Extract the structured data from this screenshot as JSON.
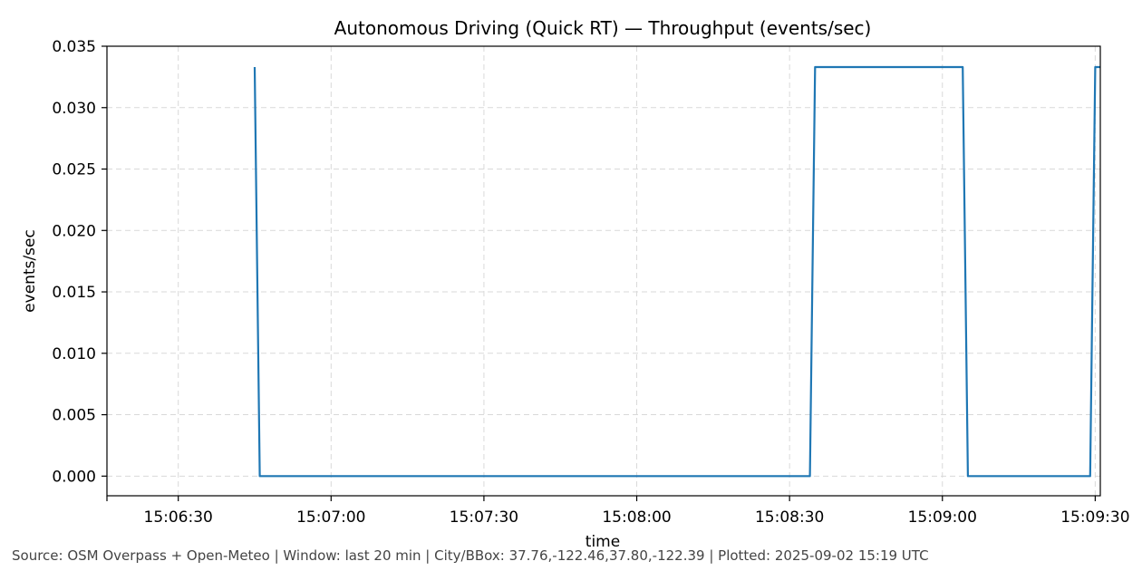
{
  "chart_data": {
    "type": "line",
    "title": "Autonomous Driving (Quick RT) — Throughput (events/sec)",
    "xlabel": "time",
    "ylabel": "events/sec",
    "ylim": [
      -0.0016,
      0.035
    ],
    "xlim": [
      "15:06:16",
      "15:09:31"
    ],
    "yticks": [
      "0.000",
      "0.005",
      "0.010",
      "0.015",
      "0.020",
      "0.025",
      "0.030",
      "0.035"
    ],
    "xticks": [
      "15:06:30",
      "15:07:00",
      "15:07:30",
      "15:08:00",
      "15:08:30",
      "15:09:00",
      "15:09:30"
    ],
    "grid": true,
    "line_color": "#1f77b4",
    "series": [
      {
        "x": [
          "15:06:45",
          "15:06:46",
          "15:08:34",
          "15:08:35",
          "15:09:04",
          "15:09:05",
          "15:09:29",
          "15:09:30",
          "15:09:31"
        ],
        "values": [
          0.0333,
          0.0,
          0.0,
          0.0333,
          0.0333,
          0.0,
          0.0,
          0.0333,
          0.0333
        ]
      }
    ]
  },
  "footer": {
    "source": "Source: OSM Overpass + Open-Meteo | Window: last 20 min | City/BBox: 37.76,-122.46,37.80,-122.39 | Plotted: 2025-09-02 15:19 UTC"
  }
}
